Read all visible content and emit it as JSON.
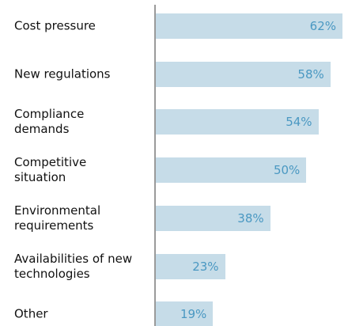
{
  "chart_data": {
    "type": "bar",
    "orientation": "horizontal",
    "categories": [
      "Cost pressure",
      "New regulations",
      "Compliance demands",
      "Competitive situation",
      "Environmental requirements",
      "Availabilities of new technologies",
      "Other"
    ],
    "values": [
      62,
      58,
      54,
      50,
      38,
      23,
      19
    ],
    "value_labels": [
      "62%",
      "58%",
      "54%",
      "50%",
      "38%",
      "23%",
      "19%"
    ],
    "color": "#c6dce8",
    "xlim": [
      0,
      62
    ]
  }
}
